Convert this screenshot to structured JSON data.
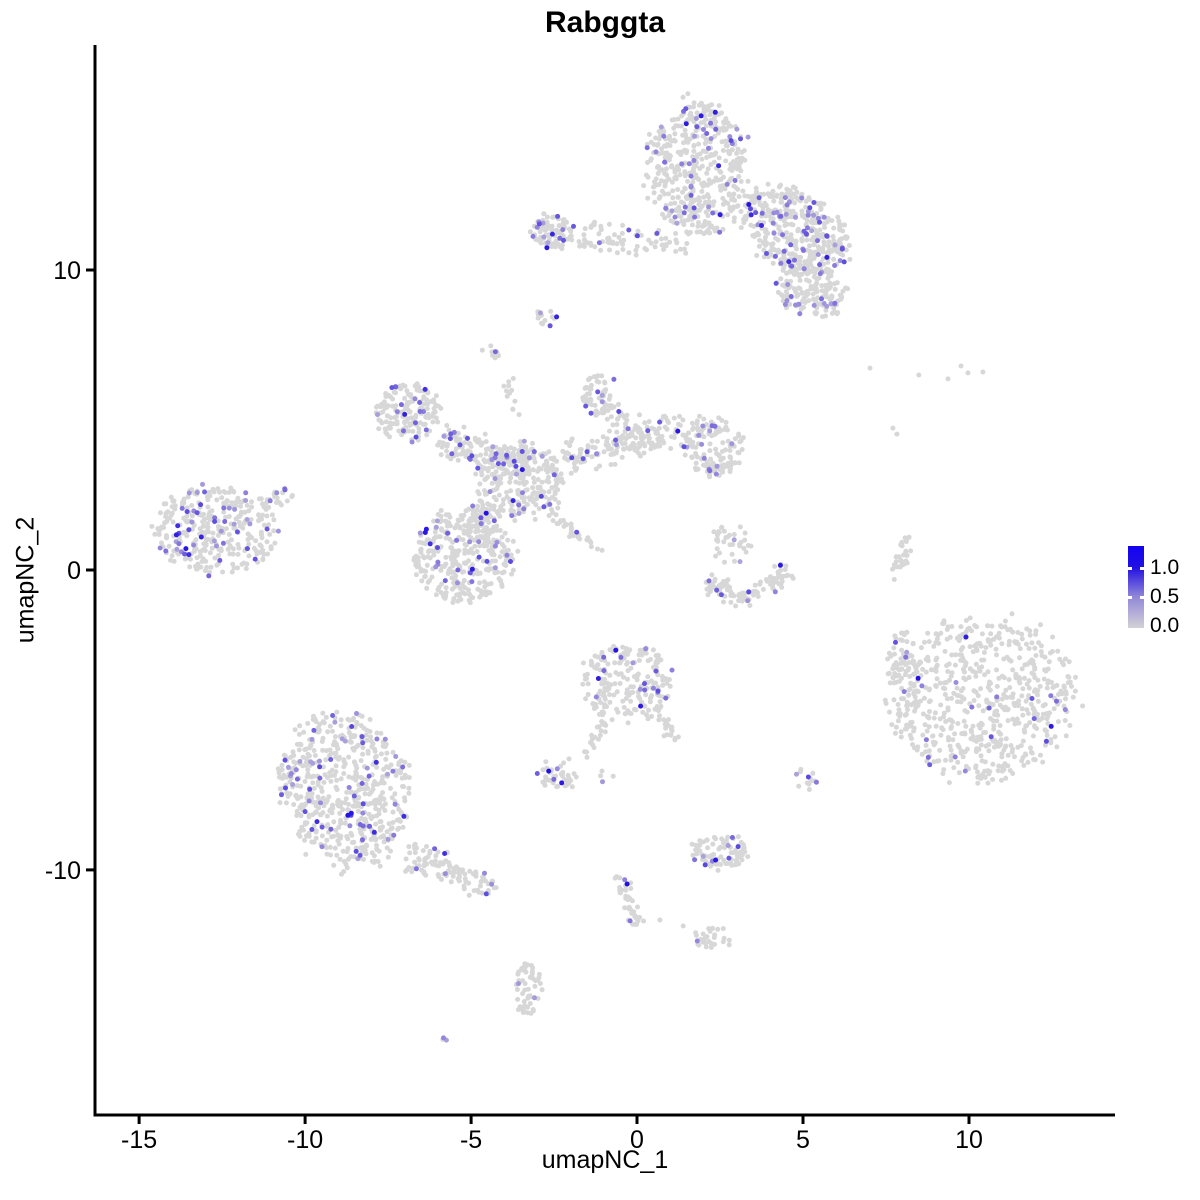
{
  "chart_data": {
    "type": "scatter",
    "title": "Rabggta",
    "xlabel": "umapNC_1",
    "ylabel": "umapNC_2",
    "xlim": [
      -16.33,
      14.4
    ],
    "ylim": [
      -18.17,
      17.5
    ],
    "x_ticks": [
      -15,
      -10,
      -5,
      0,
      5,
      10
    ],
    "y_ticks": [
      10,
      0,
      -10
    ],
    "grid": false,
    "legend": {
      "position": "right",
      "ticks": [
        "1.0",
        "0.5",
        "0.0"
      ],
      "values": [
        1.0,
        0.5,
        0.0
      ],
      "bar_top_color": "#1203f0",
      "bar_mid_color": "#9187d8",
      "bar_bottom_color": "#d3d1d6"
    },
    "colors": {
      "low": "#d7d7d7",
      "mid": "#8e80dd",
      "high": "#2210e2"
    },
    "point_radius": 2.5,
    "seed": 20240613,
    "clusters": [
      {
        "name": "top-main",
        "shape": "blob",
        "cx": 1.81,
        "cy": 13.33,
        "rx": 1.5,
        "ry": 2.3,
        "rot": 0,
        "n": 500,
        "frac": 0.11
      },
      {
        "name": "top-wing",
        "shape": "blob",
        "cx": 4.76,
        "cy": 11.33,
        "rx": 1.8,
        "ry": 1.25,
        "rot": -35,
        "n": 400,
        "frac": 0.14
      },
      {
        "name": "top-wing-lower",
        "shape": "blob",
        "cx": 5.27,
        "cy": 9.27,
        "rx": 1.15,
        "ry": 0.8,
        "rot": -20,
        "n": 150,
        "frac": 0.09
      },
      {
        "name": "top-arm-blob",
        "shape": "blob",
        "cx": -2.56,
        "cy": 11.27,
        "rx": 0.62,
        "ry": 0.58,
        "rot": 0,
        "n": 90,
        "frac": 0.12
      },
      {
        "name": "top-arm-strand",
        "shape": "strand",
        "x1": -1.78,
        "y1": 11.07,
        "x2": 1.54,
        "y2": 10.9,
        "w": 0.45,
        "n": 80,
        "frac": 0.08
      },
      {
        "name": "islet-a",
        "shape": "blob",
        "cx": -2.74,
        "cy": 8.43,
        "rx": 0.33,
        "ry": 0.33,
        "rot": 0,
        "n": 14,
        "frac": 0.2
      },
      {
        "name": "islet-b",
        "shape": "blob",
        "cx": -4.43,
        "cy": 7.27,
        "rx": 0.27,
        "ry": 0.27,
        "rot": 0,
        "n": 9,
        "frac": 0.25
      },
      {
        "name": "neck-strand",
        "shape": "strand",
        "x1": -4.01,
        "y1": 6.6,
        "x2": -3.64,
        "y2": 5.2,
        "w": 0.2,
        "n": 13,
        "frac": 0.0
      },
      {
        "name": "central-top-blob",
        "shape": "blob",
        "cx": -1.2,
        "cy": 5.9,
        "rx": 0.55,
        "ry": 0.67,
        "rot": 0,
        "n": 55,
        "frac": 0.1
      },
      {
        "name": "central-top-strand",
        "shape": "strand",
        "x1": -1.11,
        "y1": 5.5,
        "x2": 0.39,
        "y2": 4.33,
        "w": 0.45,
        "n": 45,
        "frac": 0.08
      },
      {
        "name": "central-ul-blob",
        "shape": "blob",
        "cx": -6.9,
        "cy": 5.27,
        "rx": 1.0,
        "ry": 0.95,
        "rot": 20,
        "n": 160,
        "frac": 0.08
      },
      {
        "name": "central-l-strand",
        "shape": "strand",
        "x1": -5.87,
        "y1": 4.4,
        "x2": -3.37,
        "y2": 3.4,
        "w": 0.5,
        "n": 150,
        "frac": 0.1
      },
      {
        "name": "central-knot",
        "shape": "blob",
        "cx": -3.52,
        "cy": 3.0,
        "rx": 1.3,
        "ry": 1.3,
        "rot": 0,
        "n": 260,
        "frac": 0.08
      },
      {
        "name": "central-r-strand",
        "shape": "strand",
        "x1": -2.17,
        "y1": 3.67,
        "x2": 1.45,
        "y2": 4.73,
        "w": 0.55,
        "n": 170,
        "frac": 0.06
      },
      {
        "name": "central-r-blob",
        "shape": "blob",
        "cx": 2.26,
        "cy": 4.13,
        "rx": 0.95,
        "ry": 1.0,
        "rot": 0,
        "n": 140,
        "frac": 0.08
      },
      {
        "name": "central-lower-blob",
        "shape": "blob",
        "cx": -5.27,
        "cy": 0.47,
        "rx": 1.5,
        "ry": 1.55,
        "rot": 0,
        "n": 340,
        "frac": 0.09
      },
      {
        "name": "central-connector",
        "shape": "strand",
        "x1": -4.37,
        "y1": 2.33,
        "x2": -4.88,
        "y2": 1.0,
        "w": 0.45,
        "n": 50,
        "frac": 0.06
      },
      {
        "name": "thin-diagonal",
        "shape": "strand",
        "x1": -2.59,
        "y1": 1.87,
        "x2": -1.08,
        "y2": 0.57,
        "w": 0.12,
        "n": 30,
        "frac": 0.07
      },
      {
        "name": "left-cluster",
        "shape": "blob",
        "cx": -12.74,
        "cy": 1.3,
        "rx": 1.85,
        "ry": 1.5,
        "rot": -8,
        "n": 340,
        "frac": 0.13
      },
      {
        "name": "left-tail",
        "shape": "strand",
        "x1": -11.3,
        "y1": 2.07,
        "x2": -10.51,
        "y2": 2.6,
        "w": 0.3,
        "n": 25,
        "frac": 0.1
      },
      {
        "name": "v-upper",
        "shape": "blob",
        "cx": 2.89,
        "cy": 0.9,
        "rx": 0.7,
        "ry": 0.7,
        "rot": 0,
        "n": 35,
        "frac": 0.1
      },
      {
        "name": "v-arc-left",
        "shape": "strand",
        "x1": 2.05,
        "y1": -0.4,
        "x2": 3.25,
        "y2": -1.05,
        "w": 0.35,
        "n": 55,
        "frac": 0.05
      },
      {
        "name": "v-arc-right",
        "shape": "strand",
        "x1": 3.25,
        "y1": -1.05,
        "x2": 4.55,
        "y2": -0.05,
        "w": 0.35,
        "n": 55,
        "frac": 0.04
      },
      {
        "name": "comma-strand",
        "shape": "strand",
        "x1": 8.13,
        "y1": 1.07,
        "x2": 7.74,
        "y2": -0.33,
        "w": 0.18,
        "n": 30,
        "frac": 0.04
      },
      {
        "name": "right-big",
        "shape": "blob",
        "cx": 10.39,
        "cy": -4.27,
        "rx": 2.8,
        "ry": 2.7,
        "rot": 15,
        "n": 650,
        "frac": 0.05
      },
      {
        "name": "right-appendix",
        "shape": "blob",
        "cx": 8.01,
        "cy": -2.93,
        "rx": 0.55,
        "ry": 0.9,
        "rot": 0,
        "n": 45,
        "frac": 0.06
      },
      {
        "name": "bottom-left-big",
        "shape": "blob",
        "cx": -8.8,
        "cy": -7.33,
        "rx": 1.9,
        "ry": 2.6,
        "rot": 10,
        "n": 600,
        "frac": 0.11
      },
      {
        "name": "bottom-left-tail",
        "shape": "strand",
        "x1": -6.99,
        "y1": -9.5,
        "x2": -4.19,
        "y2": -10.6,
        "w": 0.5,
        "n": 110,
        "frac": 0.07
      },
      {
        "name": "center-bottom",
        "shape": "blob",
        "cx": -0.27,
        "cy": -3.8,
        "rx": 1.35,
        "ry": 1.35,
        "rot": 0,
        "n": 210,
        "frac": 0.08
      },
      {
        "name": "cb-strand-left",
        "shape": "strand",
        "x1": -1.05,
        "y1": -5.07,
        "x2": -1.54,
        "y2": -6.27,
        "w": 0.18,
        "n": 22,
        "frac": 0.0
      },
      {
        "name": "cb-arm-right",
        "shape": "strand",
        "x1": 0.78,
        "y1": -4.93,
        "x2": 1.23,
        "y2": -5.73,
        "w": 0.18,
        "n": 18,
        "frac": 0.0
      },
      {
        "name": "small-left",
        "shape": "blob",
        "cx": -2.41,
        "cy": -6.8,
        "rx": 0.6,
        "ry": 0.5,
        "rot": 0,
        "n": 40,
        "frac": 0.07
      },
      {
        "name": "dot-pair",
        "shape": "blob",
        "cx": -0.96,
        "cy": -6.83,
        "rx": 0.2,
        "ry": 0.2,
        "rot": 0,
        "n": 4,
        "frac": 0.3
      },
      {
        "name": "small-right",
        "shape": "blob",
        "cx": 5.06,
        "cy": -6.97,
        "rx": 0.35,
        "ry": 0.35,
        "rot": 0,
        "n": 14,
        "frac": 0.3
      },
      {
        "name": "lower-mid",
        "shape": "blob",
        "cx": 2.47,
        "cy": -9.37,
        "rx": 0.8,
        "ry": 0.6,
        "rot": 0,
        "n": 85,
        "frac": 0.08
      },
      {
        "name": "tail-strand-a",
        "shape": "strand",
        "x1": -0.51,
        "y1": -10.13,
        "x2": -0.27,
        "y2": -11.0,
        "w": 0.18,
        "n": 20,
        "frac": 0.05
      },
      {
        "name": "tail-strand-b",
        "shape": "strand",
        "x1": -0.27,
        "y1": -11.0,
        "x2": 0.03,
        "y2": -11.93,
        "w": 0.18,
        "n": 20,
        "frac": 0.05
      },
      {
        "name": "blob-low-right",
        "shape": "blob",
        "cx": 2.26,
        "cy": -12.3,
        "rx": 0.55,
        "ry": 0.4,
        "rot": 0,
        "n": 28,
        "frac": 0.06
      },
      {
        "name": "vertical-low",
        "shape": "blob",
        "cx": -3.31,
        "cy": -13.97,
        "rx": 0.4,
        "ry": 0.92,
        "rot": 0,
        "n": 55,
        "frac": 0.08
      },
      {
        "name": "tiny-bottom",
        "shape": "blob",
        "cx": -5.99,
        "cy": -15.7,
        "rx": 0.2,
        "ry": 0.2,
        "rot": 0,
        "n": 3,
        "frac": 0.34
      }
    ],
    "singles": [
      {
        "x": 7.02,
        "y": 6.73,
        "v": 0
      },
      {
        "x": 8.49,
        "y": 6.5,
        "v": 0
      },
      {
        "x": 9.37,
        "y": 6.37,
        "v": 0
      },
      {
        "x": 9.76,
        "y": 6.8,
        "v": 0
      },
      {
        "x": 9.97,
        "y": 6.57,
        "v": 0
      },
      {
        "x": 10.42,
        "y": 6.6,
        "v": 0
      },
      {
        "x": 7.71,
        "y": 4.73,
        "v": 0
      },
      {
        "x": 7.83,
        "y": 4.53,
        "v": 0
      },
      {
        "x": 0.69,
        "y": -11.67,
        "v": 0
      },
      {
        "x": 1.39,
        "y": -11.87,
        "v": 0
      },
      {
        "x": -0.3,
        "y": -10.47,
        "v": 1.0
      },
      {
        "x": -0.21,
        "y": -11.7,
        "v": 0.55
      }
    ]
  }
}
